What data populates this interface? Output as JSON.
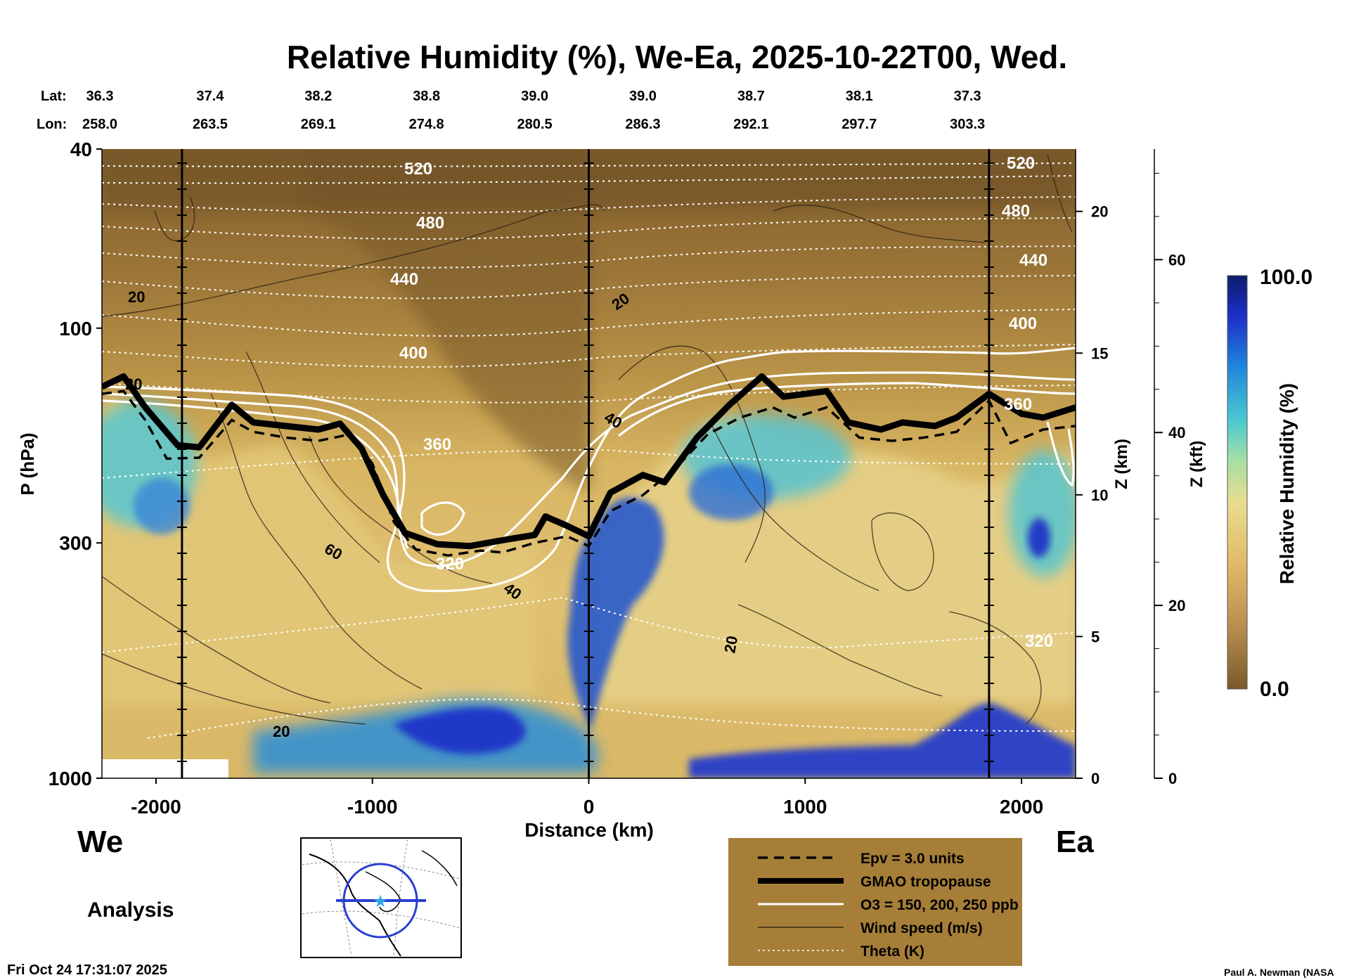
{
  "chart_data": {
    "type": "heatmap",
    "title": "Relative Humidity (%), We-Ea, 2025-10-22T00, Wed.",
    "xlabel": "Distance (km)",
    "ylabel": "P (hPa)",
    "xlim": [
      -2250,
      2250
    ],
    "x_ticks": [
      "-2000",
      "-1000",
      "0",
      "1000",
      "2000"
    ],
    "x_tick_values": [
      -2000,
      -1000,
      0,
      1000,
      2000
    ],
    "y_ticks": [
      "40",
      "100",
      "300",
      "1000"
    ],
    "y_tick_values": [
      40,
      100,
      300,
      1000
    ],
    "ylim_hpa": [
      1000,
      40
    ],
    "z_km_label": "Z (km)",
    "z_km_ticks": [
      "20",
      "15",
      "10",
      "5",
      "0"
    ],
    "z_kft_label": "Z (kft)",
    "z_kft_ticks": [
      "60",
      "40",
      "20",
      "0"
    ],
    "lat_label": "Lat:",
    "lon_label": "Lon:",
    "stations": [
      {
        "x": -2250,
        "lat": "36.3",
        "lon": "258.0"
      },
      {
        "x": -1750,
        "lat": "37.4",
        "lon": "263.5"
      },
      {
        "x": -1250,
        "lat": "38.2",
        "lon": "269.1"
      },
      {
        "x": -750,
        "lat": "38.8",
        "lon": "274.8"
      },
      {
        "x": -250,
        "lat": "39.0",
        "lon": "280.5"
      },
      {
        "x": 250,
        "lat": "39.0",
        "lon": "286.3"
      },
      {
        "x": 750,
        "lat": "38.7",
        "lon": "292.1"
      },
      {
        "x": 1250,
        "lat": "38.1",
        "lon": "297.7"
      },
      {
        "x": 1750,
        "lat": "37.3",
        "lon": "303.3"
      }
    ],
    "vertical_markers_km": [
      -1880,
      0,
      1850
    ],
    "colorbar": {
      "label": "Relative Humidity (%)",
      "max": "100.0",
      "min": "0.0"
    },
    "theta_labels": [
      "520",
      "480",
      "440",
      "400",
      "360",
      "320",
      "360",
      "320",
      "400",
      "440",
      "480",
      "520"
    ],
    "wind_labels": [
      "20",
      "20",
      "60",
      "20",
      "40",
      "40",
      "20",
      "20"
    ],
    "tropopause_hpa": [
      [
        -2250,
        135
      ],
      [
        -2150,
        128
      ],
      [
        -2050,
        150
      ],
      [
        -1900,
        182
      ],
      [
        -1800,
        184
      ],
      [
        -1650,
        148
      ],
      [
        -1550,
        162
      ],
      [
        -1400,
        165
      ],
      [
        -1250,
        168
      ],
      [
        -1150,
        163
      ],
      [
        -1050,
        185
      ],
      [
        -950,
        235
      ],
      [
        -850,
        285
      ],
      [
        -700,
        302
      ],
      [
        -550,
        305
      ],
      [
        -400,
        296
      ],
      [
        -250,
        288
      ],
      [
        -200,
        262
      ],
      [
        -100,
        275
      ],
      [
        0,
        290
      ],
      [
        100,
        232
      ],
      [
        250,
        212
      ],
      [
        350,
        220
      ],
      [
        500,
        175
      ],
      [
        650,
        148
      ],
      [
        800,
        128
      ],
      [
        900,
        142
      ],
      [
        1000,
        140
      ],
      [
        1100,
        138
      ],
      [
        1200,
        162
      ],
      [
        1350,
        168
      ],
      [
        1450,
        162
      ],
      [
        1600,
        165
      ],
      [
        1700,
        158
      ],
      [
        1850,
        140
      ],
      [
        2000,
        155
      ],
      [
        2100,
        158
      ],
      [
        2250,
        150
      ]
    ],
    "epv_3_hpa": [
      [
        -2250,
        140
      ],
      [
        -2150,
        138
      ],
      [
        -2050,
        160
      ],
      [
        -1950,
        195
      ],
      [
        -1800,
        194
      ],
      [
        -1650,
        160
      ],
      [
        -1550,
        170
      ],
      [
        -1400,
        175
      ],
      [
        -1250,
        178
      ],
      [
        -1100,
        172
      ],
      [
        -1000,
        200
      ],
      [
        -900,
        270
      ],
      [
        -800,
        310
      ],
      [
        -650,
        320
      ],
      [
        -500,
        312
      ],
      [
        -400,
        315
      ],
      [
        -250,
        300
      ],
      [
        -100,
        290
      ],
      [
        0,
        305
      ],
      [
        100,
        255
      ],
      [
        250,
        235
      ],
      [
        400,
        205
      ],
      [
        550,
        172
      ],
      [
        700,
        158
      ],
      [
        850,
        150
      ],
      [
        950,
        158
      ],
      [
        1100,
        150
      ],
      [
        1250,
        175
      ],
      [
        1400,
        178
      ],
      [
        1550,
        175
      ],
      [
        1700,
        170
      ],
      [
        1850,
        145
      ],
      [
        1950,
        180
      ],
      [
        2100,
        168
      ],
      [
        2250,
        165
      ]
    ],
    "legend": [
      {
        "label": "Epv = 3.0 units",
        "style": "dashed"
      },
      {
        "label": "GMAO tropopause",
        "style": "thick"
      },
      {
        "label": "O3 = 150, 200, 250 ppb",
        "style": "white"
      },
      {
        "label": "Wind speed (m/s)",
        "style": "thin"
      },
      {
        "label": "Theta (K)",
        "style": "dotted"
      }
    ]
  },
  "labels": {
    "left_end": "We",
    "right_end": "Ea",
    "mode": "Analysis",
    "timestamp": "Fri Oct 24 17:31:07 2025",
    "credit": "Paul A. Newman (NASA"
  },
  "colors": {
    "dry": "#8a6a36",
    "mid": "#e3c070",
    "moist": "#1f2bd0",
    "legend_bg": "#a67e38"
  }
}
